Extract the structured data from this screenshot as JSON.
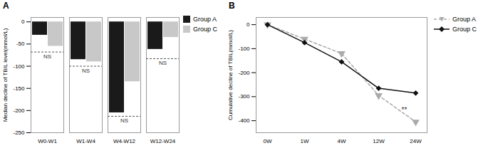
{
  "chart_data": [
    {
      "type": "bar",
      "title": "A",
      "categories": [
        "W0-W1",
        "W1-W4",
        "W4-W12",
        "W12-W24"
      ],
      "series": [
        {
          "name": "Group A",
          "color": "#1a1a1a",
          "values": [
            -30,
            -85,
            -205,
            -62
          ]
        },
        {
          "name": "Group C",
          "color": "#c8c8c8",
          "values": [
            -55,
            -90,
            -135,
            -35
          ]
        }
      ],
      "ylabel": "Median decline of TBIL level(mmol/L)",
      "ylim": [
        -250,
        10
      ],
      "yticks": [
        0,
        -50,
        -100,
        -150,
        -200,
        -250
      ],
      "legend": "right",
      "annotations": [
        {
          "text": "NS",
          "category": "W0-W1",
          "y": -68
        },
        {
          "text": "NS",
          "category": "W1-W4",
          "y": -100
        },
        {
          "text": "NS",
          "category": "W4-W12",
          "y": -213
        },
        {
          "text": "NS",
          "category": "W12-W24",
          "y": -83
        }
      ]
    },
    {
      "type": "line",
      "title": "B",
      "categories": [
        "0W",
        "1W",
        "4W",
        "12W",
        "24W"
      ],
      "series": [
        {
          "name": "Group A",
          "color": "#aaaaaa",
          "line_style": "dashed",
          "marker": "triangle-down",
          "values": [
            0,
            -60,
            -120,
            -295,
            -405
          ]
        },
        {
          "name": "Group C",
          "color": "#111111",
          "line_style": "solid",
          "marker": "diamond",
          "values": [
            0,
            -75,
            -155,
            -265,
            -285
          ]
        }
      ],
      "ylabel": "Cumulative decline of TBIL(mmol/L)",
      "ylim": [
        -450,
        30
      ],
      "yticks": [
        0,
        -100,
        -200,
        -300,
        -400
      ],
      "legend": "right",
      "annotations": [
        {
          "text": "**",
          "category": "24W",
          "y": -355
        }
      ]
    }
  ]
}
